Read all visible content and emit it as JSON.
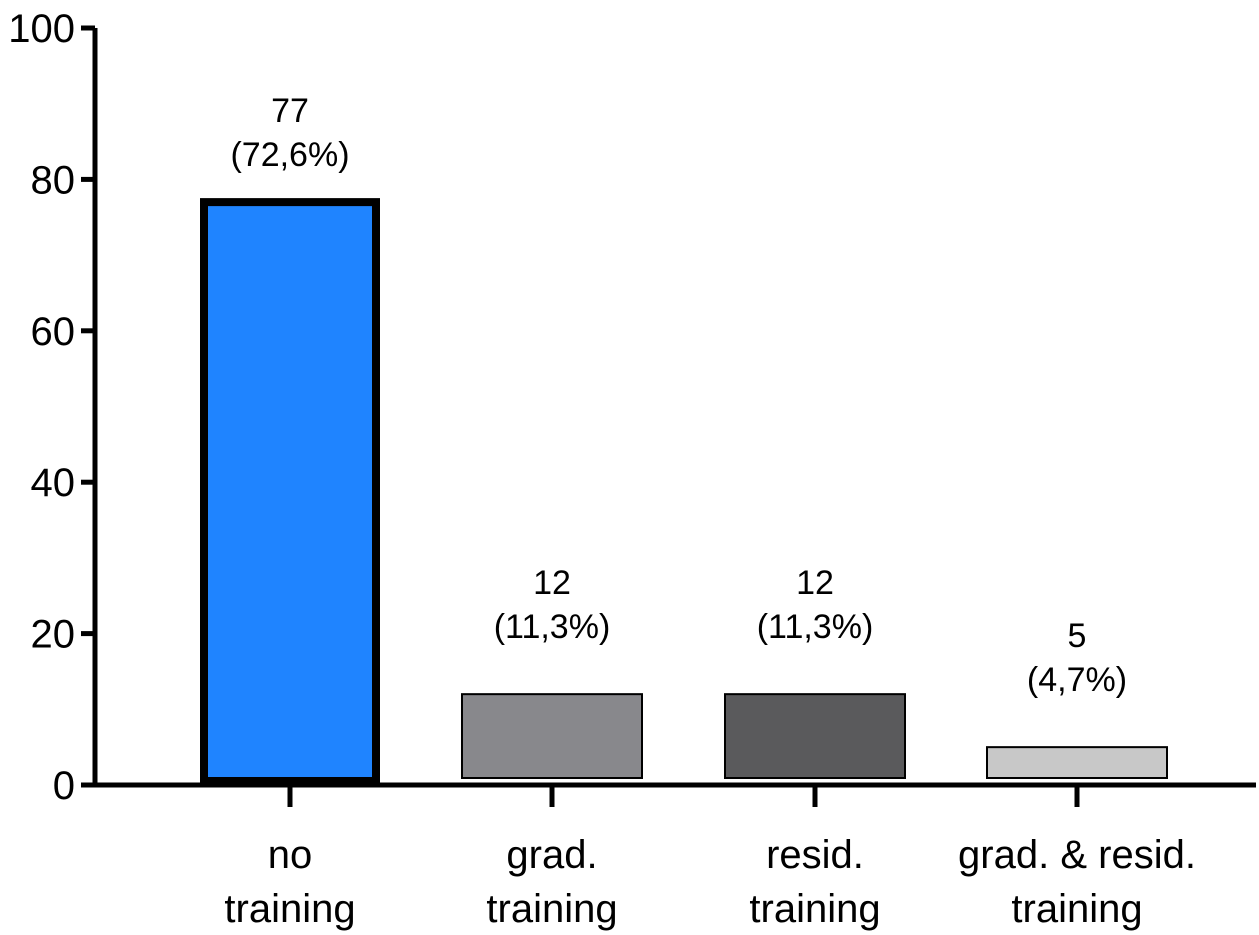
{
  "chart_data": {
    "type": "bar",
    "categories": [
      [
        "no",
        "training"
      ],
      [
        "grad.",
        "training"
      ],
      [
        "resid.",
        "training"
      ],
      [
        "grad. & resid.",
        "training"
      ]
    ],
    "values": [
      77,
      12,
      12,
      5
    ],
    "data_labels": [
      [
        "77",
        "(72,6%)"
      ],
      [
        "12",
        "(11,3%)"
      ],
      [
        "12",
        "(11,3%)"
      ],
      [
        "5",
        "(4,7%)"
      ]
    ],
    "bar_colors": [
      "#1f84ff",
      "#88888c",
      "#5a5a5c",
      "#c8c8c8"
    ],
    "bar_outlined": [
      true,
      false,
      false,
      false
    ],
    "yticks": [
      "0",
      "20",
      "40",
      "60",
      "80",
      "100"
    ],
    "ylim": [
      0,
      100
    ],
    "title": "",
    "xlabel": "",
    "ylabel": "",
    "grid": false
  }
}
